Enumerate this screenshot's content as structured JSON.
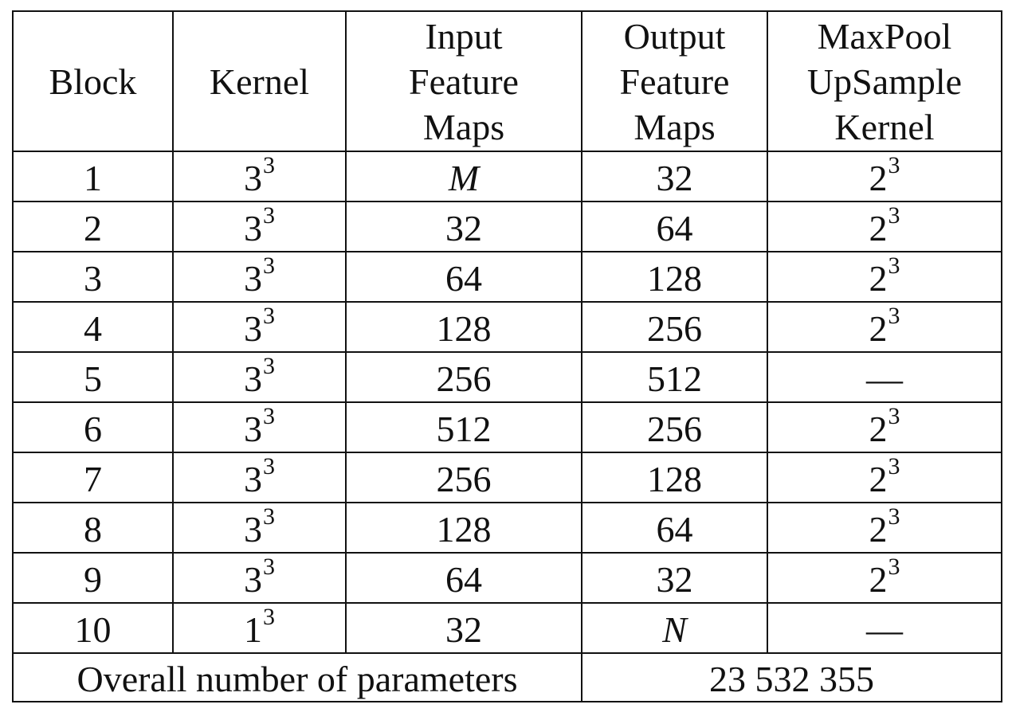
{
  "table": {
    "headers": [
      {
        "key": "block",
        "lines": [
          "Block"
        ]
      },
      {
        "key": "kernel",
        "lines": [
          "Kernel"
        ]
      },
      {
        "key": "input",
        "lines": [
          "Input",
          "Feature",
          "Maps"
        ]
      },
      {
        "key": "output",
        "lines": [
          "Output",
          "Feature",
          "Maps"
        ]
      },
      {
        "key": "pool",
        "lines": [
          "MaxPool",
          "UpSample",
          "Kernel"
        ]
      }
    ],
    "rows": [
      {
        "block": "1",
        "kernel_base": "3",
        "kernel_exp": "3",
        "input": "M",
        "output": "32",
        "pool_base": "2",
        "pool_exp": "3"
      },
      {
        "block": "2",
        "kernel_base": "3",
        "kernel_exp": "3",
        "input": "32",
        "output": "64",
        "pool_base": "2",
        "pool_exp": "3"
      },
      {
        "block": "3",
        "kernel_base": "3",
        "kernel_exp": "3",
        "input": "64",
        "output": "128",
        "pool_base": "2",
        "pool_exp": "3"
      },
      {
        "block": "4",
        "kernel_base": "3",
        "kernel_exp": "3",
        "input": "128",
        "output": "256",
        "pool_base": "2",
        "pool_exp": "3"
      },
      {
        "block": "5",
        "kernel_base": "3",
        "kernel_exp": "3",
        "input": "256",
        "output": "512",
        "pool_base": "—",
        "pool_exp": ""
      },
      {
        "block": "6",
        "kernel_base": "3",
        "kernel_exp": "3",
        "input": "512",
        "output": "256",
        "pool_base": "2",
        "pool_exp": "3"
      },
      {
        "block": "7",
        "kernel_base": "3",
        "kernel_exp": "3",
        "input": "256",
        "output": "128",
        "pool_base": "2",
        "pool_exp": "3"
      },
      {
        "block": "8",
        "kernel_base": "3",
        "kernel_exp": "3",
        "input": "128",
        "output": "64",
        "pool_base": "2",
        "pool_exp": "3"
      },
      {
        "block": "9",
        "kernel_base": "3",
        "kernel_exp": "3",
        "input": "64",
        "output": "32",
        "pool_base": "2",
        "pool_exp": "3"
      },
      {
        "block": "10",
        "kernel_base": "1",
        "kernel_exp": "3",
        "input": "32",
        "output": "N",
        "pool_base": "—",
        "pool_exp": ""
      }
    ],
    "footer": {
      "label": "Overall number of parameters",
      "value": "23 532 355"
    }
  }
}
